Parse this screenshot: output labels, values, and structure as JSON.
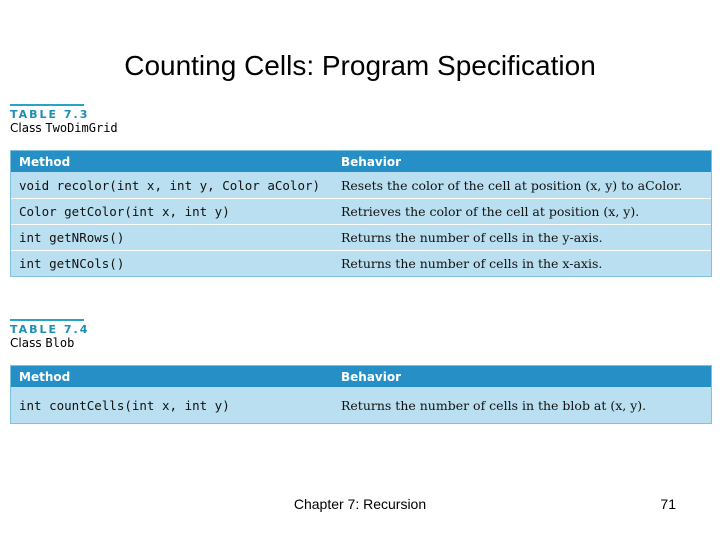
{
  "slide": {
    "title": "Counting Cells: Program Specification",
    "footer": "Chapter 7: Recursion",
    "page_number": "71"
  },
  "table1": {
    "number": "TABLE 7.3",
    "class_prefix": "Class",
    "class_name": "TwoDimGrid",
    "headers": {
      "method": "Method",
      "behavior": "Behavior"
    },
    "rows": [
      {
        "method": "void recolor(int x, int y, Color aColor)",
        "behavior": "Resets the color of the cell at position (x, y) to aColor."
      },
      {
        "method": "Color getColor(int x, int y)",
        "behavior": "Retrieves the color of the cell at position (x, y)."
      },
      {
        "method": "int getNRows()",
        "behavior": "Returns the number of cells in the y-axis."
      },
      {
        "method": "int getNCols()",
        "behavior": "Returns the number of cells in the x-axis."
      }
    ]
  },
  "table2": {
    "number": "TABLE 7.4",
    "class_prefix": "Class",
    "class_name": "Blob",
    "headers": {
      "method": "Method",
      "behavior": "Behavior"
    },
    "rows": [
      {
        "method": "int countCells(int x, int y)",
        "behavior": "Returns the number of cells in the blob at (x, y)."
      }
    ]
  },
  "colors": {
    "header_bg": "#2690c6",
    "row_bg": "#b9dff0",
    "caption_accent": "#1e8db8"
  }
}
